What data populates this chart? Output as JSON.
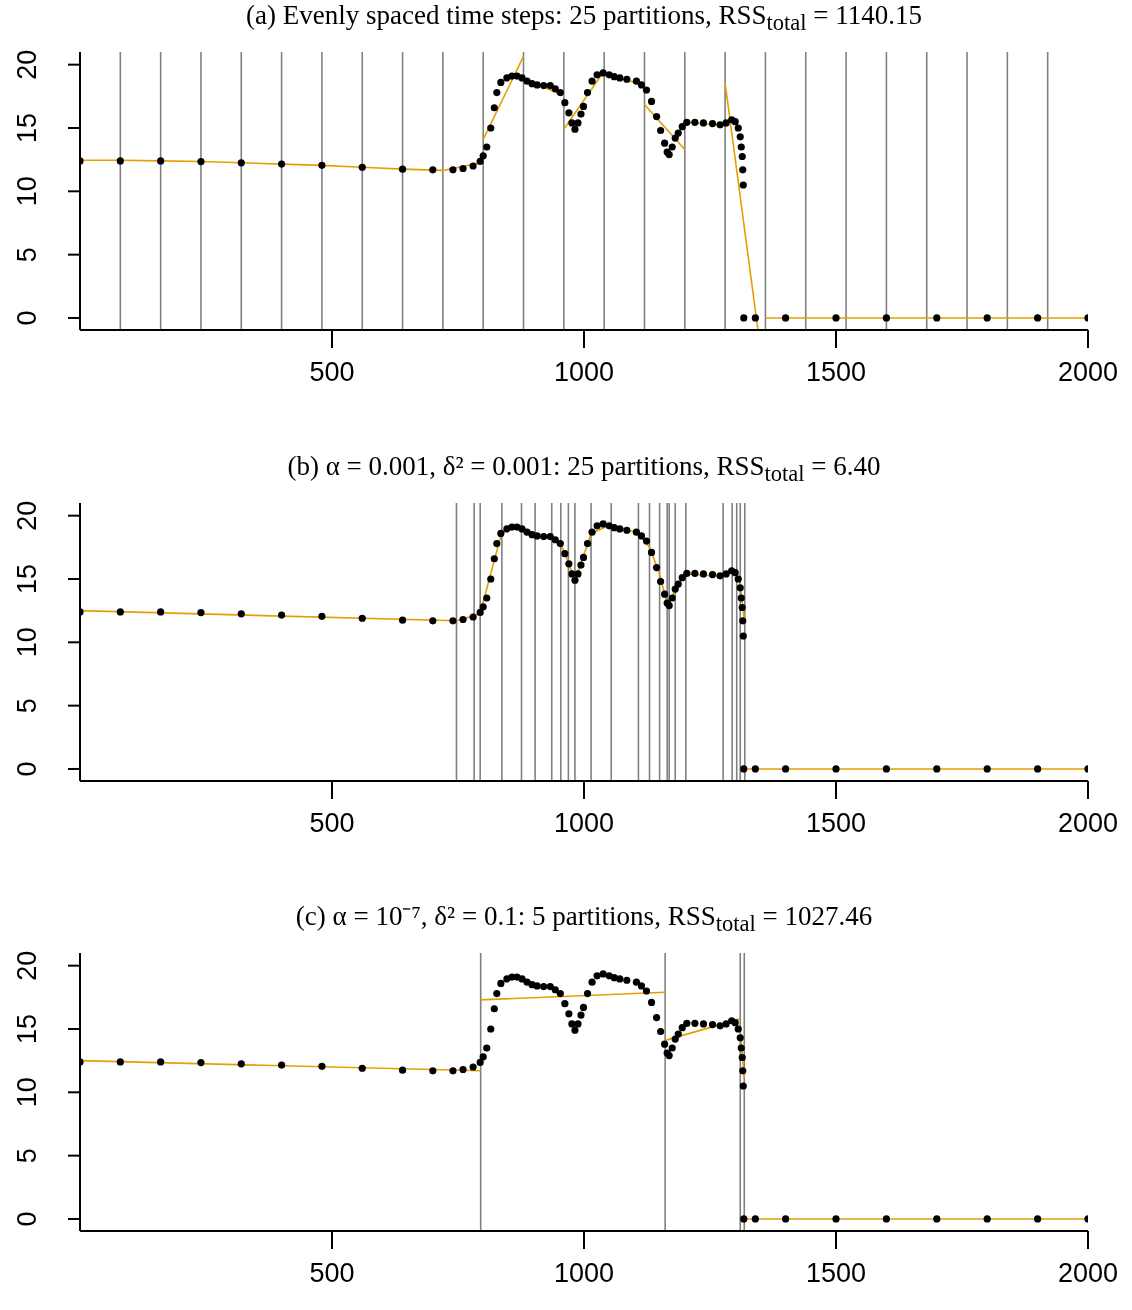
{
  "chart_data": [
    {
      "type": "scatter",
      "title": "(a) Evenly spaced time steps: 25 partitions, RSS$_{total}$ = 1140.15",
      "xlim": [
        0,
        2000
      ],
      "xticks": [
        500,
        1000,
        1500,
        2000
      ],
      "ylim": [
        -0.95,
        21.0
      ],
      "yticks": [
        0,
        5,
        10,
        15,
        20
      ],
      "series": [
        {
          "marker": "circle",
          "color": "#000000",
          "x": [
            0,
            80,
            160,
            240,
            320,
            400,
            480,
            560,
            640,
            700,
            740,
            760,
            780,
            794,
            800,
            807,
            815,
            822,
            827,
            835,
            847,
            857,
            867,
            877,
            887,
            897,
            907,
            920,
            933,
            943,
            953,
            962,
            970,
            976,
            982,
            988,
            994,
            999,
            1007,
            1016,
            1026,
            1038,
            1050,
            1060,
            1071,
            1085,
            1104,
            1114,
            1124,
            1134,
            1144,
            1152,
            1160,
            1165,
            1169,
            1175,
            1181,
            1187,
            1195,
            1204,
            1220,
            1237,
            1255,
            1270,
            1282,
            1293,
            1300,
            1306,
            1310,
            1312,
            1314,
            1315,
            1316,
            1317,
            1340,
            1400,
            1500,
            1600,
            1700,
            1800,
            1900,
            2000
          ],
          "values": [
            12.4,
            12.4,
            12.4,
            12.35,
            12.25,
            12.15,
            12.05,
            11.9,
            11.75,
            11.7,
            11.7,
            11.8,
            12.0,
            12.36,
            12.8,
            13.5,
            15.0,
            16.6,
            17.8,
            18.6,
            18.95,
            19.1,
            19.1,
            18.95,
            18.7,
            18.5,
            18.4,
            18.35,
            18.35,
            18.1,
            17.8,
            17.0,
            16.2,
            15.4,
            14.9,
            15.4,
            16.1,
            16.7,
            17.8,
            18.7,
            19.2,
            19.35,
            19.2,
            19.05,
            18.95,
            18.85,
            18.7,
            18.4,
            18.0,
            17.1,
            15.9,
            14.8,
            13.8,
            13.1,
            12.9,
            13.5,
            14.2,
            14.6,
            15.1,
            15.45,
            15.45,
            15.4,
            15.35,
            15.25,
            15.4,
            15.65,
            15.5,
            15.0,
            14.3,
            13.5,
            12.75,
            11.7,
            10.5,
            0,
            0,
            0,
            0,
            0,
            0,
            0,
            0,
            0
          ]
        },
        {
          "type": "line",
          "color": "#e69f00",
          "x": [
            0,
            80,
            160,
            240,
            320,
            400,
            480,
            560,
            640,
            720,
            800
          ],
          "values": [
            12.45,
            12.45,
            12.4,
            12.35,
            12.25,
            12.15,
            12.05,
            11.9,
            11.75,
            11.65,
            12.3
          ]
        },
        {
          "type": "line",
          "color": "#e69f00",
          "x": [
            800,
            880
          ],
          "values": [
            14.1,
            20.65
          ]
        },
        {
          "type": "line",
          "color": "#e69f00",
          "x": [
            880,
            960
          ],
          "values": [
            18.9,
            17.55
          ]
        },
        {
          "type": "line",
          "color": "#e69f00",
          "x": [
            960,
            1040
          ],
          "values": [
            14.9,
            19.5
          ]
        },
        {
          "type": "line",
          "color": "#e69f00",
          "x": [
            1040,
            1120
          ],
          "values": [
            19.35,
            18.35
          ]
        },
        {
          "type": "line",
          "color": "#e69f00",
          "x": [
            1120,
            1200
          ],
          "values": [
            16.85,
            13.3
          ]
        },
        {
          "type": "line",
          "color": "#e69f00",
          "x": [
            1200,
            1280
          ],
          "values": [
            15.45,
            15.2
          ]
        },
        {
          "type": "line",
          "color": "#e69f00",
          "x": [
            1280,
            1345
          ],
          "values": [
            18.55,
            -0.9
          ]
        },
        {
          "type": "line",
          "color": "#e69f00",
          "x": [
            1360,
            2000
          ],
          "values": [
            0,
            0
          ]
        }
      ],
      "ref_lines": [
        {
          "axis": "x",
          "value": 80,
          "color": "#808080"
        },
        {
          "axis": "x",
          "value": 160,
          "color": "#808080"
        },
        {
          "axis": "x",
          "value": 240,
          "color": "#808080"
        },
        {
          "axis": "x",
          "value": 320,
          "color": "#808080"
        },
        {
          "axis": "x",
          "value": 400,
          "color": "#808080"
        },
        {
          "axis": "x",
          "value": 480,
          "color": "#808080"
        },
        {
          "axis": "x",
          "value": 560,
          "color": "#808080"
        },
        {
          "axis": "x",
          "value": 640,
          "color": "#808080"
        },
        {
          "axis": "x",
          "value": 720,
          "color": "#808080"
        },
        {
          "axis": "x",
          "value": 800,
          "color": "#808080"
        },
        {
          "axis": "x",
          "value": 880,
          "color": "#808080"
        },
        {
          "axis": "x",
          "value": 960,
          "color": "#808080"
        },
        {
          "axis": "x",
          "value": 1040,
          "color": "#808080"
        },
        {
          "axis": "x",
          "value": 1120,
          "color": "#808080"
        },
        {
          "axis": "x",
          "value": 1200,
          "color": "#808080"
        },
        {
          "axis": "x",
          "value": 1280,
          "color": "#808080"
        },
        {
          "axis": "x",
          "value": 1360,
          "color": "#808080"
        },
        {
          "axis": "x",
          "value": 1440,
          "color": "#808080"
        },
        {
          "axis": "x",
          "value": 1520,
          "color": "#808080"
        },
        {
          "axis": "x",
          "value": 1600,
          "color": "#808080"
        },
        {
          "axis": "x",
          "value": 1680,
          "color": "#808080"
        },
        {
          "axis": "x",
          "value": 1760,
          "color": "#808080"
        },
        {
          "axis": "x",
          "value": 1840,
          "color": "#808080"
        },
        {
          "axis": "x",
          "value": 1920,
          "color": "#808080"
        }
      ]
    },
    {
      "type": "scatter",
      "title": "(b) α = 0.001, δ² = 0.001: 25 partitions, RSS$_{total}$ = 6.40",
      "xlim": [
        0,
        2000
      ],
      "xticks": [
        500,
        1000,
        1500,
        2000
      ],
      "ylim": [
        -0.95,
        21.0
      ],
      "yticks": [
        0,
        5,
        10,
        15,
        20
      ],
      "series": [
        {
          "marker": "circle",
          "color": "#000000",
          "x": [
            0,
            80,
            160,
            240,
            320,
            400,
            480,
            560,
            640,
            700,
            740,
            760,
            780,
            794,
            800,
            807,
            815,
            822,
            827,
            835,
            847,
            857,
            867,
            877,
            887,
            897,
            907,
            920,
            933,
            943,
            953,
            962,
            970,
            976,
            982,
            988,
            994,
            999,
            1007,
            1016,
            1026,
            1038,
            1050,
            1060,
            1071,
            1085,
            1104,
            1114,
            1124,
            1134,
            1144,
            1152,
            1160,
            1165,
            1169,
            1175,
            1181,
            1187,
            1195,
            1204,
            1220,
            1237,
            1255,
            1270,
            1282,
            1293,
            1300,
            1306,
            1310,
            1312,
            1314,
            1315,
            1316,
            1317,
            1340,
            1400,
            1500,
            1600,
            1700,
            1800,
            1900,
            2000
          ],
          "values": [
            12.4,
            12.4,
            12.4,
            12.35,
            12.25,
            12.15,
            12.05,
            11.9,
            11.75,
            11.7,
            11.7,
            11.8,
            12.0,
            12.36,
            12.8,
            13.5,
            15.0,
            16.6,
            17.8,
            18.6,
            18.95,
            19.1,
            19.1,
            18.95,
            18.7,
            18.5,
            18.4,
            18.35,
            18.35,
            18.1,
            17.8,
            17.0,
            16.2,
            15.4,
            14.9,
            15.4,
            16.1,
            16.7,
            17.8,
            18.7,
            19.2,
            19.35,
            19.2,
            19.05,
            18.95,
            18.85,
            18.7,
            18.4,
            18.0,
            17.1,
            15.9,
            14.8,
            13.8,
            13.1,
            12.9,
            13.5,
            14.2,
            14.6,
            15.1,
            15.45,
            15.45,
            15.4,
            15.35,
            15.25,
            15.4,
            15.65,
            15.5,
            15.0,
            14.3,
            13.5,
            12.75,
            11.7,
            10.5,
            0,
            0,
            0,
            0,
            0,
            0,
            0,
            0,
            0
          ]
        },
        {
          "type": "line",
          "color": "#e69f00",
          "x": [
            0,
            747,
            782,
            794,
            837,
            876,
            903,
            936,
            954,
            969,
            982,
            1014,
            1054,
            1108,
            1130,
            1150,
            1165,
            1169,
            1181,
            1202,
            1276,
            1294,
            1303,
            1310,
            1319
          ],
          "values": [
            12.5,
            11.7,
            12.1,
            12.3,
            18.7,
            19.1,
            18.4,
            18.3,
            17.8,
            16.3,
            14.8,
            18.6,
            19.3,
            18.6,
            17.5,
            15.4,
            13.0,
            12.9,
            14.3,
            15.4,
            15.2,
            15.6,
            15.4,
            14.5,
            11.5
          ]
        },
        {
          "type": "line",
          "color": "#e69f00",
          "x": [
            1319,
            2000
          ],
          "values": [
            0,
            0
          ]
        }
      ],
      "ref_lines": [
        {
          "axis": "x",
          "value": 747,
          "color": "#808080"
        },
        {
          "axis": "x",
          "value": 782,
          "color": "#808080"
        },
        {
          "axis": "x",
          "value": 794,
          "color": "#808080"
        },
        {
          "axis": "x",
          "value": 837,
          "color": "#808080"
        },
        {
          "axis": "x",
          "value": 876,
          "color": "#808080"
        },
        {
          "axis": "x",
          "value": 903,
          "color": "#808080"
        },
        {
          "axis": "x",
          "value": 936,
          "color": "#808080"
        },
        {
          "axis": "x",
          "value": 954,
          "color": "#808080"
        },
        {
          "axis": "x",
          "value": 969,
          "color": "#808080"
        },
        {
          "axis": "x",
          "value": 982,
          "color": "#808080"
        },
        {
          "axis": "x",
          "value": 1014,
          "color": "#808080"
        },
        {
          "axis": "x",
          "value": 1054,
          "color": "#808080"
        },
        {
          "axis": "x",
          "value": 1108,
          "color": "#808080"
        },
        {
          "axis": "x",
          "value": 1130,
          "color": "#808080"
        },
        {
          "axis": "x",
          "value": 1150,
          "color": "#808080"
        },
        {
          "axis": "x",
          "value": 1165,
          "color": "#808080"
        },
        {
          "axis": "x",
          "value": 1169,
          "color": "#808080"
        },
        {
          "axis": "x",
          "value": 1181,
          "color": "#808080"
        },
        {
          "axis": "x",
          "value": 1202,
          "color": "#808080"
        },
        {
          "axis": "x",
          "value": 1276,
          "color": "#808080"
        },
        {
          "axis": "x",
          "value": 1294,
          "color": "#808080"
        },
        {
          "axis": "x",
          "value": 1303,
          "color": "#808080"
        },
        {
          "axis": "x",
          "value": 1310,
          "color": "#808080"
        },
        {
          "axis": "x",
          "value": 1319,
          "color": "#808080"
        }
      ]
    },
    {
      "type": "scatter",
      "title": "(c) α = 10⁻⁷, δ² = 0.1: 5 partitions, RSS$_{total}$ = 1027.46",
      "xlim": [
        0,
        2000
      ],
      "xticks": [
        500,
        1000,
        1500,
        2000
      ],
      "ylim": [
        -0.95,
        21.0
      ],
      "yticks": [
        0,
        5,
        10,
        15,
        20
      ],
      "series": [
        {
          "marker": "circle",
          "color": "#000000",
          "x": [
            0,
            80,
            160,
            240,
            320,
            400,
            480,
            560,
            640,
            700,
            740,
            760,
            780,
            794,
            800,
            807,
            815,
            822,
            827,
            835,
            847,
            857,
            867,
            877,
            887,
            897,
            907,
            920,
            933,
            943,
            953,
            962,
            970,
            976,
            982,
            988,
            994,
            999,
            1007,
            1016,
            1026,
            1038,
            1050,
            1060,
            1071,
            1085,
            1104,
            1114,
            1124,
            1134,
            1144,
            1152,
            1160,
            1165,
            1169,
            1175,
            1181,
            1187,
            1195,
            1204,
            1220,
            1237,
            1255,
            1270,
            1282,
            1293,
            1300,
            1306,
            1310,
            1312,
            1314,
            1315,
            1316,
            1317,
            1340,
            1400,
            1500,
            1600,
            1700,
            1800,
            1900,
            2000
          ],
          "values": [
            12.4,
            12.4,
            12.4,
            12.35,
            12.25,
            12.15,
            12.05,
            11.9,
            11.75,
            11.7,
            11.7,
            11.8,
            12.0,
            12.36,
            12.8,
            13.5,
            15.0,
            16.6,
            17.8,
            18.6,
            18.95,
            19.1,
            19.1,
            18.95,
            18.7,
            18.5,
            18.4,
            18.35,
            18.35,
            18.1,
            17.8,
            17.0,
            16.2,
            15.4,
            14.9,
            15.4,
            16.1,
            16.7,
            17.8,
            18.7,
            19.2,
            19.35,
            19.2,
            19.05,
            18.95,
            18.85,
            18.7,
            18.4,
            18.0,
            17.1,
            15.9,
            14.8,
            13.8,
            13.1,
            12.9,
            13.5,
            14.2,
            14.6,
            15.1,
            15.45,
            15.45,
            15.4,
            15.35,
            15.25,
            15.4,
            15.65,
            15.5,
            15.0,
            14.3,
            13.5,
            12.75,
            11.7,
            10.5,
            0,
            0,
            0,
            0,
            0,
            0,
            0,
            0,
            0
          ]
        },
        {
          "type": "line",
          "color": "#e69f00",
          "x": [
            0,
            795
          ],
          "values": [
            12.5,
            11.7
          ]
        },
        {
          "type": "line",
          "color": "#e69f00",
          "x": [
            795,
            1161
          ],
          "values": [
            17.3,
            17.9
          ]
        },
        {
          "type": "line",
          "color": "#e69f00",
          "x": [
            1161,
            1310
          ],
          "values": [
            14.1,
            15.8
          ]
        },
        {
          "type": "line",
          "color": "#e69f00",
          "x": [
            1310,
            1318
          ],
          "values": [
            14.9,
            11.1
          ]
        },
        {
          "type": "line",
          "color": "#e69f00",
          "x": [
            1318,
            2000
          ],
          "values": [
            0,
            0
          ]
        }
      ],
      "ref_lines": [
        {
          "axis": "x",
          "value": 795,
          "color": "#808080"
        },
        {
          "axis": "x",
          "value": 1161,
          "color": "#808080"
        },
        {
          "axis": "x",
          "value": 1310,
          "color": "#808080"
        },
        {
          "axis": "x",
          "value": 1318,
          "color": "#808080"
        }
      ]
    }
  ]
}
